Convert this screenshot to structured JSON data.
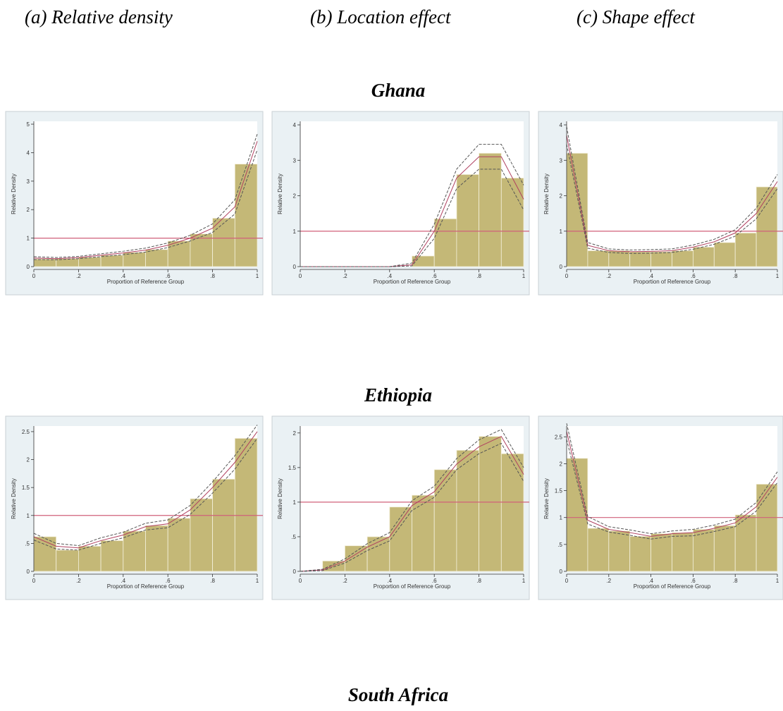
{
  "headers": [
    "(a) Relative density",
    "(b) Location effect",
    "(c) Shape effect"
  ],
  "row_titles": [
    "Ghana",
    "Ethiopia",
    "South Africa"
  ],
  "chart_data": [
    {
      "type": "histogram",
      "ylabel": "Relative Density",
      "xlabel": "Proportion of Reference Group",
      "color": "#c4b877",
      "hline": 1,
      "hline_color": "#d0607a",
      "bins": [
        0,
        0.1,
        0.2,
        0.3,
        0.4,
        0.5,
        0.6,
        0.7,
        0.8,
        0.9,
        1
      ],
      "values": [
        0.27,
        0.28,
        0.33,
        0.4,
        0.5,
        0.6,
        0.9,
        1.15,
        1.7,
        3.6
      ],
      "x": [
        0,
        0.1,
        0.2,
        0.3,
        0.4,
        0.5,
        0.6,
        0.7,
        0.8,
        0.9,
        1
      ],
      "series": [
        {
          "color": "#b04060",
          "dash": false,
          "values": [
            0.3,
            0.28,
            0.32,
            0.4,
            0.48,
            0.58,
            0.75,
            1.0,
            1.35,
            2.1,
            4.4
          ]
        },
        {
          "color": "#555555",
          "dash": true,
          "values": [
            0.35,
            0.32,
            0.36,
            0.45,
            0.54,
            0.65,
            0.83,
            1.1,
            1.5,
            2.35,
            4.65
          ]
        },
        {
          "color": "#555555",
          "dash": true,
          "values": [
            0.25,
            0.24,
            0.28,
            0.35,
            0.42,
            0.51,
            0.67,
            0.9,
            1.2,
            1.85,
            4.1
          ]
        }
      ],
      "xlim": [
        0,
        1
      ],
      "xticks": [
        0,
        {
          "value": 0.2,
          "label": ".2"
        },
        {
          "value": 0.4,
          "label": ".4"
        },
        {
          "value": 0.6,
          "label": ".6"
        },
        {
          "value": 0.8,
          "label": ".8"
        },
        1
      ],
      "ylim": [
        0,
        5.1
      ],
      "yticks": [
        0,
        1,
        2,
        3,
        4,
        5
      ]
    },
    {
      "type": "histogram",
      "ylabel": "Relative Density",
      "xlabel": "Proportion of Reference Group",
      "color": "#c4b877",
      "hline": 1,
      "hline_color": "#d0607a",
      "bins": [
        0,
        0.1,
        0.2,
        0.3,
        0.4,
        0.5,
        0.6,
        0.7,
        0.8,
        0.9,
        1
      ],
      "values": [
        0,
        0,
        0,
        0,
        0,
        0.3,
        1.35,
        2.6,
        3.2,
        2.5
      ],
      "x": [
        0,
        0.1,
        0.2,
        0.3,
        0.4,
        0.5,
        0.6,
        0.7,
        0.8,
        0.9,
        1
      ],
      "series": [
        {
          "color": "#b04060",
          "dash": false,
          "values": [
            0,
            0,
            0,
            0,
            0,
            0.05,
            1.0,
            2.5,
            3.1,
            3.1,
            1.9
          ]
        },
        {
          "color": "#555555",
          "dash": true,
          "values": [
            0,
            0,
            0,
            0,
            0,
            0.1,
            1.2,
            2.75,
            3.45,
            3.45,
            2.3
          ]
        },
        {
          "color": "#555555",
          "dash": true,
          "values": [
            0,
            0,
            0,
            0,
            0,
            0.02,
            0.8,
            2.2,
            2.75,
            2.75,
            1.6
          ]
        }
      ],
      "xlim": [
        0,
        1
      ],
      "xticks": [
        0,
        {
          "value": 0.2,
          "label": ".2"
        },
        {
          "value": 0.4,
          "label": ".4"
        },
        {
          "value": 0.6,
          "label": ".6"
        },
        {
          "value": 0.8,
          "label": ".8"
        },
        1
      ],
      "ylim": [
        0,
        4.1
      ],
      "yticks": [
        0,
        1,
        2,
        3,
        4
      ]
    },
    {
      "type": "histogram",
      "ylabel": "Relative Density",
      "xlabel": "Proportion of Reference Group",
      "color": "#c4b877",
      "hline": 1,
      "hline_color": "#d0607a",
      "bins": [
        0,
        0.1,
        0.2,
        0.3,
        0.4,
        0.5,
        0.6,
        0.7,
        0.8,
        0.9,
        1
      ],
      "values": [
        3.2,
        0.45,
        0.45,
        0.42,
        0.42,
        0.45,
        0.55,
        0.68,
        0.95,
        2.25
      ],
      "x": [
        0,
        0.1,
        0.2,
        0.3,
        0.4,
        0.5,
        0.6,
        0.7,
        0.8,
        0.9,
        1
      ],
      "series": [
        {
          "color": "#b04060",
          "dash": false,
          "values": [
            3.7,
            0.6,
            0.45,
            0.42,
            0.43,
            0.45,
            0.55,
            0.7,
            0.95,
            1.5,
            2.4
          ]
        },
        {
          "color": "#555555",
          "dash": true,
          "values": [
            3.95,
            0.68,
            0.5,
            0.47,
            0.48,
            0.5,
            0.61,
            0.77,
            1.04,
            1.65,
            2.6
          ]
        },
        {
          "color": "#555555",
          "dash": true,
          "values": [
            3.45,
            0.52,
            0.4,
            0.37,
            0.38,
            0.4,
            0.49,
            0.63,
            0.86,
            1.35,
            2.2
          ]
        }
      ],
      "xlim": [
        0,
        1
      ],
      "xticks": [
        0,
        {
          "value": 0.2,
          "label": ".2"
        },
        {
          "value": 0.4,
          "label": ".4"
        },
        {
          "value": 0.6,
          "label": ".6"
        },
        {
          "value": 0.8,
          "label": ".8"
        },
        1
      ],
      "ylim": [
        0,
        4.1
      ],
      "yticks": [
        0,
        1,
        2,
        3,
        4
      ]
    },
    {
      "type": "histogram",
      "ylabel": "Relative Density",
      "xlabel": "Proportion of Reference Group",
      "color": "#c4b877",
      "hline": 1,
      "hline_color": "#d0607a",
      "bins": [
        0,
        0.1,
        0.2,
        0.3,
        0.4,
        0.5,
        0.6,
        0.7,
        0.8,
        0.9,
        1
      ],
      "values": [
        0.62,
        0.38,
        0.45,
        0.55,
        0.72,
        0.82,
        0.95,
        1.3,
        1.65,
        2.38
      ],
      "x": [
        0,
        0.1,
        0.2,
        0.3,
        0.4,
        0.5,
        0.6,
        0.7,
        0.8,
        0.9,
        1
      ],
      "series": [
        {
          "color": "#b04060",
          "dash": false,
          "values": [
            0.62,
            0.45,
            0.42,
            0.55,
            0.65,
            0.8,
            0.85,
            1.1,
            1.5,
            1.95,
            2.5
          ]
        },
        {
          "color": "#555555",
          "dash": true,
          "values": [
            0.68,
            0.5,
            0.46,
            0.6,
            0.7,
            0.86,
            0.92,
            1.18,
            1.6,
            2.07,
            2.62
          ]
        },
        {
          "color": "#555555",
          "dash": true,
          "values": [
            0.56,
            0.4,
            0.38,
            0.5,
            0.6,
            0.74,
            0.78,
            1.02,
            1.4,
            1.83,
            2.38
          ]
        }
      ],
      "xlim": [
        0,
        1
      ],
      "xticks": [
        0,
        {
          "value": 0.2,
          "label": ".2"
        },
        {
          "value": 0.4,
          "label": ".4"
        },
        {
          "value": 0.6,
          "label": ".6"
        },
        {
          "value": 0.8,
          "label": ".8"
        },
        1
      ],
      "ylim": [
        0,
        2.6
      ],
      "yticks": [
        0,
        {
          "value": 0.5,
          "label": ".5"
        },
        1,
        1.5,
        2,
        2.5
      ]
    },
    {
      "type": "histogram",
      "ylabel": "Relative Density",
      "xlabel": "Proportion of Reference Group",
      "color": "#c4b877",
      "hline": 1,
      "hline_color": "#d0607a",
      "bins": [
        0,
        0.1,
        0.2,
        0.3,
        0.4,
        0.5,
        0.6,
        0.7,
        0.8,
        0.9,
        1
      ],
      "values": [
        0,
        0.15,
        0.37,
        0.5,
        0.93,
        1.1,
        1.47,
        1.75,
        1.95,
        1.7
      ],
      "x": [
        0,
        0.1,
        0.2,
        0.3,
        0.4,
        0.5,
        0.6,
        0.7,
        0.8,
        0.9,
        1
      ],
      "series": [
        {
          "color": "#b04060",
          "dash": false,
          "values": [
            0,
            0.02,
            0.15,
            0.35,
            0.5,
            0.95,
            1.15,
            1.55,
            1.8,
            1.95,
            1.4
          ]
        },
        {
          "color": "#555555",
          "dash": true,
          "values": [
            0,
            0.03,
            0.18,
            0.4,
            0.56,
            1.02,
            1.23,
            1.63,
            1.9,
            2.05,
            1.5
          ]
        },
        {
          "color": "#555555",
          "dash": true,
          "values": [
            0,
            0.01,
            0.12,
            0.3,
            0.44,
            0.88,
            1.07,
            1.47,
            1.7,
            1.85,
            1.3
          ]
        }
      ],
      "xlim": [
        0,
        1
      ],
      "xticks": [
        0,
        {
          "value": 0.2,
          "label": ".2"
        },
        {
          "value": 0.4,
          "label": ".4"
        },
        {
          "value": 0.6,
          "label": ".6"
        },
        {
          "value": 0.8,
          "label": ".8"
        },
        1
      ],
      "ylim": [
        0,
        2.1
      ],
      "yticks": [
        0,
        {
          "value": 0.5,
          "label": ".5"
        },
        1,
        1.5,
        2
      ]
    },
    {
      "type": "histogram",
      "ylabel": "Relative Density",
      "xlabel": "Proportion of Reference Group",
      "color": "#c4b877",
      "hline": 1,
      "hline_color": "#d0607a",
      "bins": [
        0,
        0.1,
        0.2,
        0.3,
        0.4,
        0.5,
        0.6,
        0.7,
        0.8,
        0.9,
        1
      ],
      "values": [
        2.1,
        0.8,
        0.75,
        0.65,
        0.7,
        0.72,
        0.78,
        0.85,
        1.05,
        1.62
      ],
      "x": [
        0,
        0.1,
        0.2,
        0.3,
        0.4,
        0.5,
        0.6,
        0.7,
        0.8,
        0.9,
        1
      ],
      "series": [
        {
          "color": "#b04060",
          "dash": false,
          "values": [
            2.6,
            0.95,
            0.78,
            0.72,
            0.65,
            0.7,
            0.72,
            0.8,
            0.9,
            1.2,
            1.75
          ]
        },
        {
          "color": "#555555",
          "dash": true,
          "values": [
            2.75,
            1.02,
            0.83,
            0.77,
            0.7,
            0.75,
            0.78,
            0.86,
            0.97,
            1.28,
            1.85
          ]
        },
        {
          "color": "#555555",
          "dash": true,
          "values": [
            2.45,
            0.88,
            0.73,
            0.67,
            0.6,
            0.65,
            0.66,
            0.74,
            0.83,
            1.12,
            1.65
          ]
        }
      ],
      "xlim": [
        0,
        1
      ],
      "xticks": [
        0,
        {
          "value": 0.2,
          "label": ".2"
        },
        {
          "value": 0.4,
          "label": ".4"
        },
        {
          "value": 0.6,
          "label": ".6"
        },
        {
          "value": 0.8,
          "label": ".8"
        },
        1
      ],
      "ylim": [
        0,
        2.7
      ],
      "yticks": [
        0,
        {
          "value": 0.5,
          "label": ".5"
        },
        1,
        1.5,
        2,
        2.5
      ]
    }
  ]
}
